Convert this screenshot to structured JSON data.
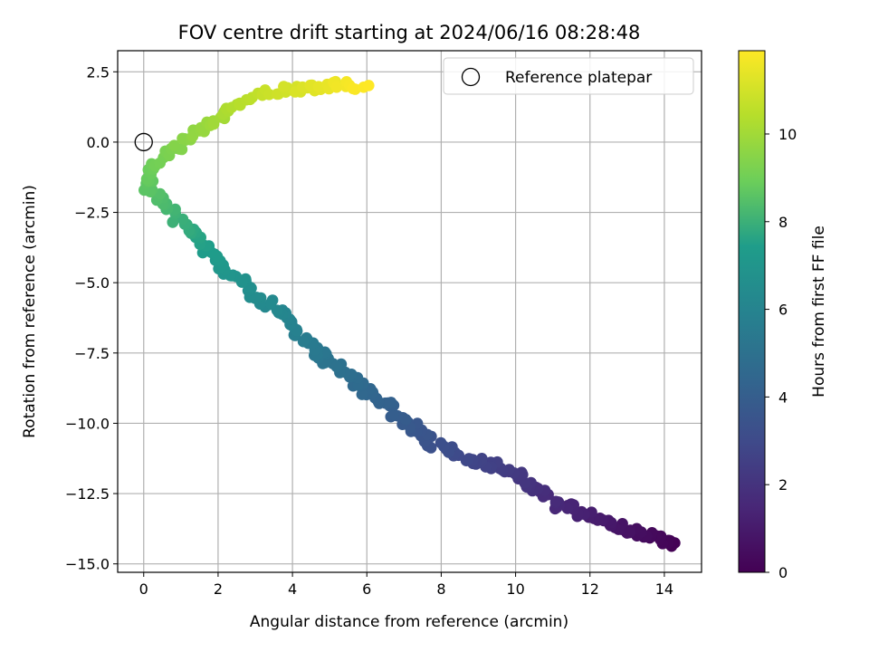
{
  "chart_data": {
    "type": "scatter",
    "title": "FOV centre drift starting at 2024/06/16 08:28:48",
    "xlabel": "Angular distance from reference (arcmin)",
    "ylabel": "Rotation from reference (arcmin)",
    "xlim": [
      -0.7,
      15.0
    ],
    "ylim": [
      -15.3,
      3.25
    ],
    "x_ticks": [
      0,
      2,
      4,
      6,
      8,
      10,
      12,
      14
    ],
    "x_tick_labels": [
      "0",
      "2",
      "4",
      "6",
      "8",
      "10",
      "12",
      "14"
    ],
    "y_ticks": [
      2.5,
      0.0,
      -2.5,
      -5.0,
      -7.5,
      -10.0,
      -12.5,
      -15.0
    ],
    "y_tick_labels": [
      "2.5",
      "0.0",
      "−2.5",
      "−5.0",
      "−7.5",
      "−10.0",
      "−12.5",
      "−15.0"
    ],
    "grid": true,
    "legend": {
      "placement": "top-right",
      "entries": [
        {
          "label": "Reference platepar",
          "marker": "open-circle"
        }
      ]
    },
    "reference_point": {
      "x": 0,
      "y": 0
    },
    "colorbar": {
      "label": "Hours from first FF file",
      "colormap": "viridis",
      "range": [
        0,
        11.9
      ],
      "ticks": [
        0,
        2,
        4,
        6,
        8,
        10
      ],
      "tick_labels": [
        "0",
        "2",
        "4",
        "6",
        "8",
        "10"
      ]
    },
    "color_scale_hours": 11.9,
    "anchor_points": [
      {
        "x": 14.3,
        "y": -14.3
      },
      {
        "x": 13.5,
        "y": -14.0
      },
      {
        "x": 12.6,
        "y": -13.6
      },
      {
        "x": 11.2,
        "y": -12.9
      },
      {
        "x": 10.5,
        "y": -12.3
      },
      {
        "x": 9.8,
        "y": -11.7
      },
      {
        "x": 8.8,
        "y": -11.3
      },
      {
        "x": 7.9,
        "y": -10.8
      },
      {
        "x": 7.4,
        "y": -10.3
      },
      {
        "x": 6.6,
        "y": -9.4
      },
      {
        "x": 6.1,
        "y": -9.1
      },
      {
        "x": 5.5,
        "y": -8.3
      },
      {
        "x": 4.8,
        "y": -7.6
      },
      {
        "x": 4.2,
        "y": -6.9
      },
      {
        "x": 3.6,
        "y": -6.0
      },
      {
        "x": 3.0,
        "y": -5.4
      },
      {
        "x": 2.3,
        "y": -4.6
      },
      {
        "x": 1.7,
        "y": -3.8
      },
      {
        "x": 1.0,
        "y": -2.9
      },
      {
        "x": 0.5,
        "y": -2.1
      },
      {
        "x": 0.1,
        "y": -1.6
      },
      {
        "x": 0.2,
        "y": -1.1
      },
      {
        "x": 0.6,
        "y": -0.4
      },
      {
        "x": 1.2,
        "y": 0.2
      },
      {
        "x": 1.8,
        "y": 0.7
      },
      {
        "x": 2.5,
        "y": 1.3
      },
      {
        "x": 3.2,
        "y": 1.7
      },
      {
        "x": 4.0,
        "y": 1.9
      },
      {
        "x": 4.7,
        "y": 2.0
      },
      {
        "x": 5.4,
        "y": 2.0
      },
      {
        "x": 5.9,
        "y": 2.0
      }
    ],
    "palette": {
      "viridis": [
        "#440154",
        "#482777",
        "#3f4a8a",
        "#31678e",
        "#26838f",
        "#1f9d8a",
        "#6cce5a",
        "#b6de2b",
        "#fee825"
      ],
      "grid": "#b0b0b0",
      "axes": "#000000"
    }
  }
}
